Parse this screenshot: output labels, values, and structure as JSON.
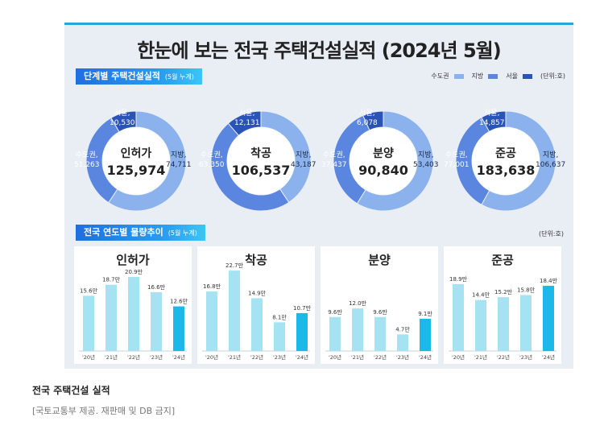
{
  "title": "한눈에 보는 전국 주택건설실적 (2024년 5월)",
  "colors": {
    "metro": "#5b86e0",
    "region": "#8bb2ec",
    "seoul": "#2a53b8",
    "bar": "#a5e3f2",
    "bar_current": "#1ab9ea"
  },
  "section1": {
    "label": "단계별 주택건설실적",
    "sub": "(5월 누계)"
  },
  "legend": {
    "metro": "수도권",
    "region": "지방",
    "seoul": "서울",
    "unit": "(단위:호)"
  },
  "section2": {
    "label": "전국 연도별 물량추이",
    "sub": "(5월 누계)",
    "unit": "(단위:호)"
  },
  "chart_data": [
    {
      "type": "pie",
      "name": "인허가",
      "total": "125,974",
      "slices": [
        {
          "name": "지방",
          "label": "지방,",
          "value": 74711,
          "value_label": "74,711"
        },
        {
          "name": "수도권",
          "label": "수도권,",
          "value": 51263,
          "value_label": "51,263"
        },
        {
          "name": "서울",
          "label": "서울,",
          "value": 10530,
          "value_label": "10,530"
        }
      ]
    },
    {
      "type": "pie",
      "name": "착공",
      "total": "106,537",
      "slices": [
        {
          "name": "지방",
          "label": "지방,",
          "value": 43187,
          "value_label": "43,187"
        },
        {
          "name": "수도권",
          "label": "수도권,",
          "value": 63350,
          "value_label": "63,350"
        },
        {
          "name": "서울",
          "label": "서울,",
          "value": 12131,
          "value_label": "12,131"
        }
      ]
    },
    {
      "type": "pie",
      "name": "분양",
      "total": "90,840",
      "slices": [
        {
          "name": "지방",
          "label": "지방,",
          "value": 53403,
          "value_label": "53,403"
        },
        {
          "name": "수도권",
          "label": "수도권,",
          "value": 37437,
          "value_label": "37,437"
        },
        {
          "name": "서울",
          "label": "서울,",
          "value": 6078,
          "value_label": "6,078"
        }
      ]
    },
    {
      "type": "pie",
      "name": "준공",
      "total": "183,638",
      "slices": [
        {
          "name": "지방",
          "label": "지방,",
          "value": 106637,
          "value_label": "106,637"
        },
        {
          "name": "수도권",
          "label": "수도권,",
          "value": 77001,
          "value_label": "77,001"
        },
        {
          "name": "서울",
          "label": "서울,",
          "value": 14857,
          "value_label": "14,857"
        }
      ]
    },
    {
      "type": "bar",
      "title": "인허가",
      "categories": [
        "'20년",
        "'21년",
        "'22년",
        "'23년",
        "'24년"
      ],
      "values": [
        15.6,
        18.7,
        20.9,
        16.6,
        12.6
      ],
      "value_labels": [
        "15.6만",
        "18.7만",
        "20.9만",
        "16.6만",
        "12.6만"
      ]
    },
    {
      "type": "bar",
      "title": "착공",
      "categories": [
        "'20년",
        "'21년",
        "'22년",
        "'23년",
        "'24년"
      ],
      "values": [
        16.8,
        22.7,
        14.9,
        8.1,
        10.7
      ],
      "value_labels": [
        "16.8만",
        "22.7만",
        "14.9만",
        "8.1만",
        "10.7만"
      ]
    },
    {
      "type": "bar",
      "title": "분양",
      "categories": [
        "'20년",
        "'21년",
        "'22년",
        "'23년",
        "'24년"
      ],
      "values": [
        9.6,
        12.0,
        9.6,
        4.7,
        9.1
      ],
      "value_labels": [
        "9.6만",
        "12.0만",
        "9.6만",
        "4.7만",
        "9.1만"
      ]
    },
    {
      "type": "bar",
      "title": "준공",
      "categories": [
        "'20년",
        "'21년",
        "'22년",
        "'23년",
        "'24년"
      ],
      "values": [
        18.9,
        14.4,
        15.2,
        15.8,
        18.4
      ],
      "value_labels": [
        "18.9만",
        "14.4만",
        "15.2만",
        "15.8만",
        "18.4만"
      ]
    }
  ],
  "caption": "전국 주택건설 실적",
  "credit": "[국토교통부 제공. 재판매 및 DB 금지]"
}
